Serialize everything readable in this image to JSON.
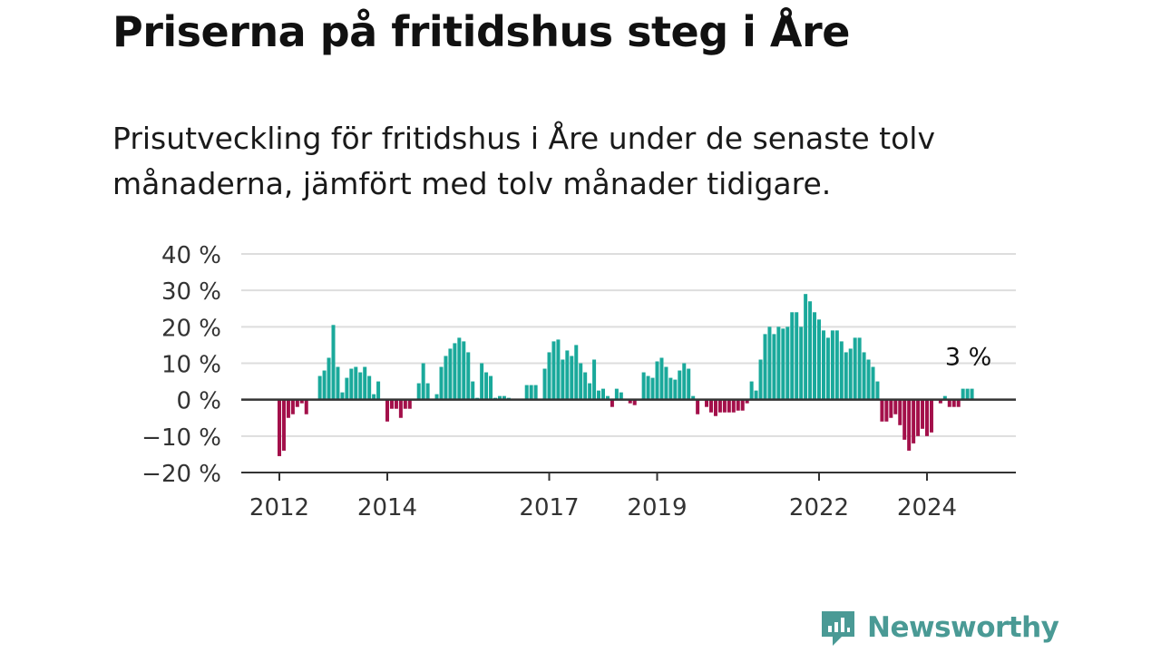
{
  "title": "Priserna på fritidshus steg i Åre",
  "subtitle": "Prisutveckling för fritidshus i Åre under de senaste tolv månaderna, jämfört med tolv månader tidigare.",
  "brand": {
    "name": "Newsworthy",
    "color": "#4a9a95"
  },
  "colors": {
    "positive": "#1aa99b",
    "negative": "#a3104a",
    "grid": "#dddddd",
    "axis": "#333333"
  },
  "chart_data": {
    "type": "bar",
    "title": "Priserna på fritidshus steg i Åre",
    "ylabel": "",
    "xlabel": "",
    "ylim": [
      -20,
      40
    ],
    "yticks": [
      40,
      30,
      20,
      10,
      0,
      -10,
      -20
    ],
    "ytick_labels": [
      "40 %",
      "30 %",
      "20 %",
      "10 %",
      "0 %",
      "−10 %",
      "−20 %"
    ],
    "xticks": [
      2012,
      2014,
      2017,
      2019,
      2022,
      2024
    ],
    "x_start": "2012-01",
    "x_end": "2025-06",
    "grid": true,
    "values": [
      -15.5,
      -14,
      -5,
      -4,
      -2,
      -1,
      -4,
      0,
      0,
      6.5,
      8,
      11.5,
      20.5,
      9,
      2,
      6,
      8.5,
      9,
      7.5,
      9,
      6.5,
      1.5,
      5,
      0,
      -6,
      -2.5,
      -2.5,
      -5,
      -2.5,
      -2.5,
      0,
      4.5,
      10,
      4.5,
      0,
      1.5,
      9,
      12,
      14,
      15.5,
      17,
      16,
      13,
      5,
      0.5,
      10,
      7.5,
      6.5,
      0.5,
      1,
      1,
      0.5,
      0,
      0,
      0,
      4,
      4,
      4,
      0,
      8.5,
      13,
      16,
      16.5,
      11,
      13.5,
      12,
      15,
      10,
      7.5,
      4.5,
      11,
      2.5,
      3,
      1,
      -2,
      3,
      2,
      0,
      -1,
      -1.5,
      0,
      7.5,
      6.5,
      6,
      10.5,
      11.5,
      9,
      6,
      5.5,
      8,
      10,
      8.5,
      1,
      -4,
      0,
      -2,
      -3.5,
      -4.5,
      -3.5,
      -3.5,
      -3.5,
      -3.5,
      -3,
      -3,
      -1,
      5,
      2.5,
      11,
      18,
      20,
      18,
      20,
      19.5,
      20,
      24,
      24,
      20,
      29,
      27,
      24,
      22,
      19,
      17,
      19,
      19,
      16,
      13,
      14,
      17,
      17,
      13,
      11,
      9,
      5,
      -6,
      -6,
      -5,
      -4,
      -7,
      -11,
      -14,
      -12,
      -10,
      -8,
      -10,
      -9,
      0,
      -1,
      1,
      -2,
      -2,
      -2,
      3,
      3,
      3
    ],
    "annotations": [
      {
        "text": "3 %",
        "position": "last bar"
      }
    ]
  }
}
